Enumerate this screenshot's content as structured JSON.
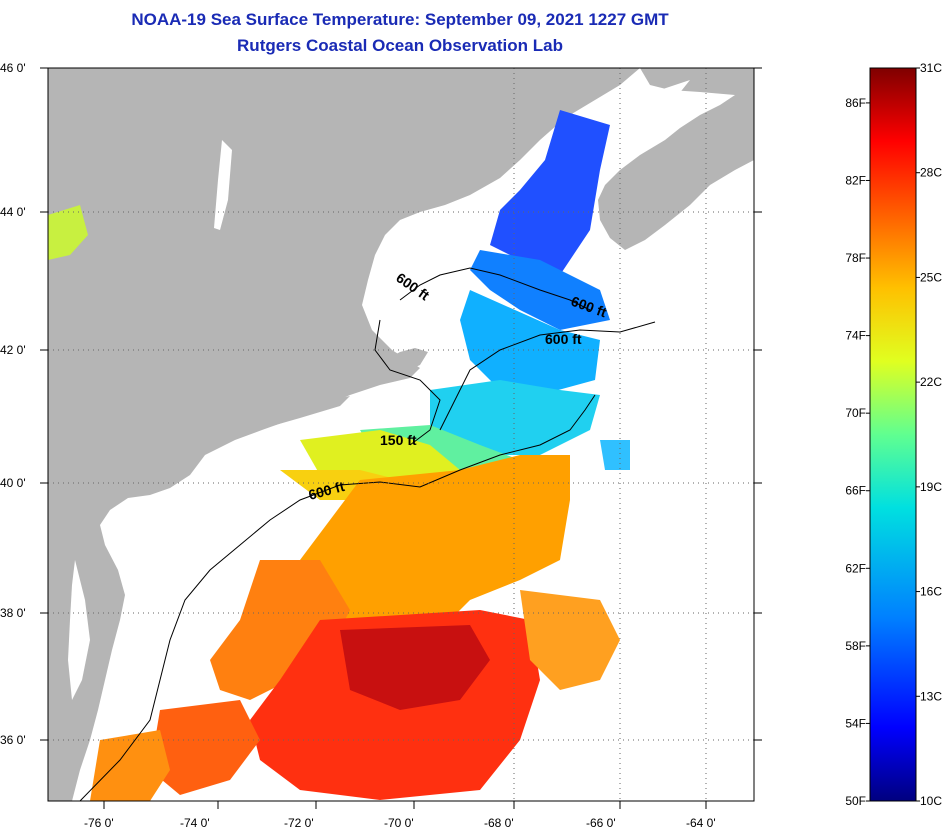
{
  "title": "NOAA-19 Sea Surface Temperature:  September 09, 2021 1227 GMT",
  "subtitle": "Rutgers Coastal Ocean Observation Lab",
  "lat_labels": [
    "46 0'",
    "44 0'",
    "42 0'",
    "40 0'",
    "38 0'",
    "36 0'"
  ],
  "lon_labels": [
    "-76 0'",
    "-74 0'",
    "-72 0'",
    "-70 0'",
    "-68 0'",
    "-66 0'",
    "-64 0'"
  ],
  "contour_labels": [
    "600 ft",
    "600 ft",
    "600 ft",
    "150 ft",
    "600 ft"
  ],
  "colorbar": {
    "celsius_labels": [
      "31C",
      "28C",
      "25C",
      "22C",
      "19C",
      "16C",
      "13C",
      "10C"
    ],
    "fahrenheit_labels": [
      "86F",
      "82F",
      "78F",
      "74F",
      "70F",
      "66F",
      "62F",
      "58F",
      "54F",
      "50F"
    ],
    "celsius_values": [
      31,
      28,
      25,
      22,
      19,
      16,
      13,
      10
    ],
    "fahrenheit_values": [
      86,
      82,
      78,
      74,
      70,
      66,
      62,
      58,
      54,
      50
    ],
    "range_c": [
      10,
      31
    ],
    "colors": [
      "#00007f",
      "#0000ff",
      "#0080ff",
      "#00e0e0",
      "#60ff90",
      "#e0ff20",
      "#ffc000",
      "#ff6000",
      "#ff0000",
      "#7f0000"
    ]
  },
  "colors": {
    "land": "#b5b5b5",
    "water_nodata": "#ffffff",
    "title_color": "#1a2bb5"
  }
}
